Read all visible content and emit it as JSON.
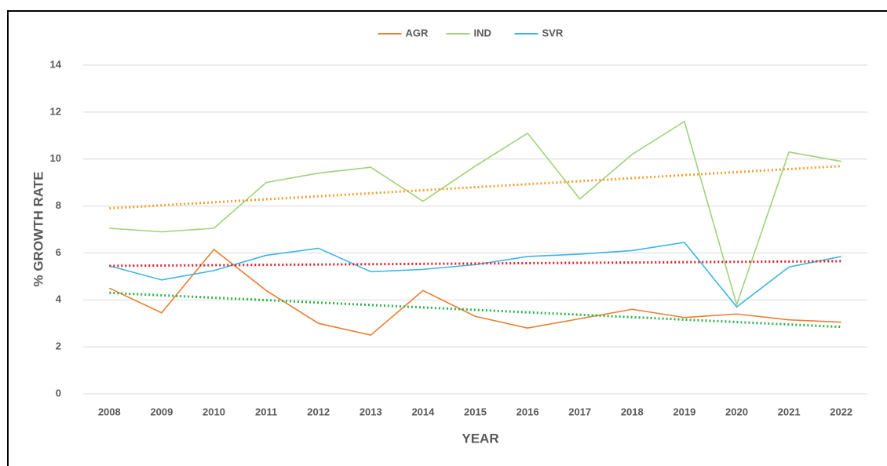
{
  "chart_data": {
    "type": "line",
    "x_label": "YEAR",
    "y_label": "% GROWTH RATE",
    "categories": [
      "2008",
      "2009",
      "2010",
      "2011",
      "2012",
      "2013",
      "2014",
      "2015",
      "2016",
      "2017",
      "2018",
      "2019",
      "2020",
      "2021",
      "2022"
    ],
    "series": [
      {
        "name": "AGR",
        "color": "#ed7d31",
        "values": [
          4.5,
          3.45,
          6.15,
          4.4,
          3.0,
          2.5,
          4.4,
          3.3,
          2.8,
          3.2,
          3.6,
          3.25,
          3.4,
          3.15,
          3.05
        ]
      },
      {
        "name": "IND",
        "color": "#9fd27a",
        "values": [
          7.05,
          6.9,
          7.05,
          9.0,
          9.4,
          9.65,
          8.2,
          9.7,
          11.1,
          8.3,
          10.2,
          11.6,
          3.8,
          10.3,
          9.9
        ]
      },
      {
        "name": "SVR",
        "color": "#3cb5e5",
        "values": [
          5.45,
          4.85,
          5.25,
          5.9,
          6.2,
          5.2,
          5.3,
          5.5,
          5.85,
          5.95,
          6.1,
          6.45,
          3.7,
          5.4,
          5.85
        ]
      }
    ],
    "trendlines": [
      {
        "color": "#f5a030",
        "values": [
          7.9,
          9.7
        ]
      },
      {
        "color": "#e0202a",
        "values": [
          5.45,
          5.65
        ]
      },
      {
        "color": "#2db34a",
        "values": [
          4.3,
          2.85
        ]
      }
    ],
    "ylim": [
      0,
      14
    ],
    "yticks": [
      0,
      2,
      4,
      6,
      8,
      10,
      12,
      14
    ],
    "grid": true,
    "legend": "top"
  }
}
